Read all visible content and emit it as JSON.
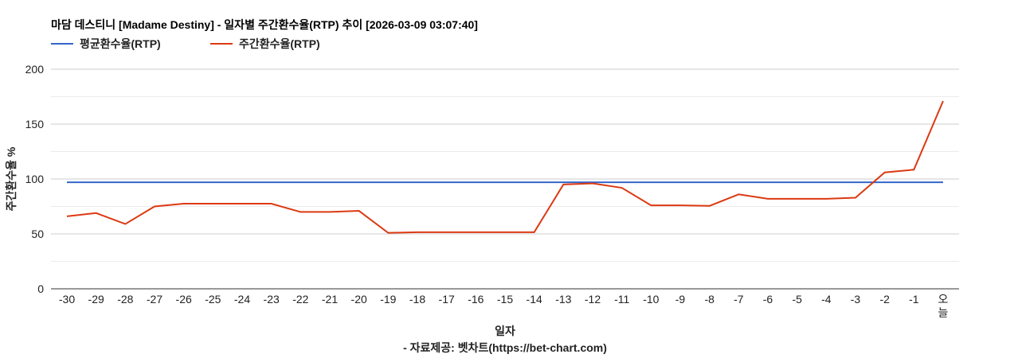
{
  "chart_data": {
    "type": "line",
    "title": "마담 데스티니 [Madame Destiny] - 일자별 주간환수율(RTP) 추이 [2026-03-09 03:07:40]",
    "xlabel": "일자",
    "ylabel": "주간환수율 %",
    "footer": "- 자료제공: 벳차트(https://bet-chart.com)",
    "ylim": [
      0,
      200
    ],
    "yticks": [
      "0",
      "50",
      "100",
      "150",
      "200"
    ],
    "grid": true,
    "legend_position": "top-left",
    "categories": [
      "-30",
      "-29",
      "-28",
      "-27",
      "-26",
      "-25",
      "-24",
      "-23",
      "-22",
      "-21",
      "-20",
      "-19",
      "-18",
      "-17",
      "-16",
      "-15",
      "-14",
      "-13",
      "-12",
      "-11",
      "-10",
      "-9",
      "-8",
      "-7",
      "-6",
      "-5",
      "-4",
      "-3",
      "-2",
      "-1",
      "오늘"
    ],
    "series": [
      {
        "name": "평균환수율(RTP)",
        "color": "#3366cc",
        "values": [
          97,
          97,
          97,
          97,
          97,
          97,
          97,
          97,
          97,
          97,
          97,
          97,
          97,
          97,
          97,
          97,
          97,
          97,
          97,
          97,
          97,
          97,
          97,
          97,
          97,
          97,
          97,
          97,
          97,
          97,
          97
        ]
      },
      {
        "name": "주간환수율(RTP)",
        "color": "#dc3912",
        "values": [
          66,
          69,
          59,
          75,
          77.5,
          77.5,
          77.5,
          77.5,
          70,
          70,
          71,
          51,
          51.5,
          51.5,
          51.5,
          51.5,
          51.5,
          95,
          96,
          92,
          76,
          76,
          75.5,
          86,
          82,
          82,
          82,
          83,
          106,
          108.5,
          171
        ]
      }
    ]
  }
}
